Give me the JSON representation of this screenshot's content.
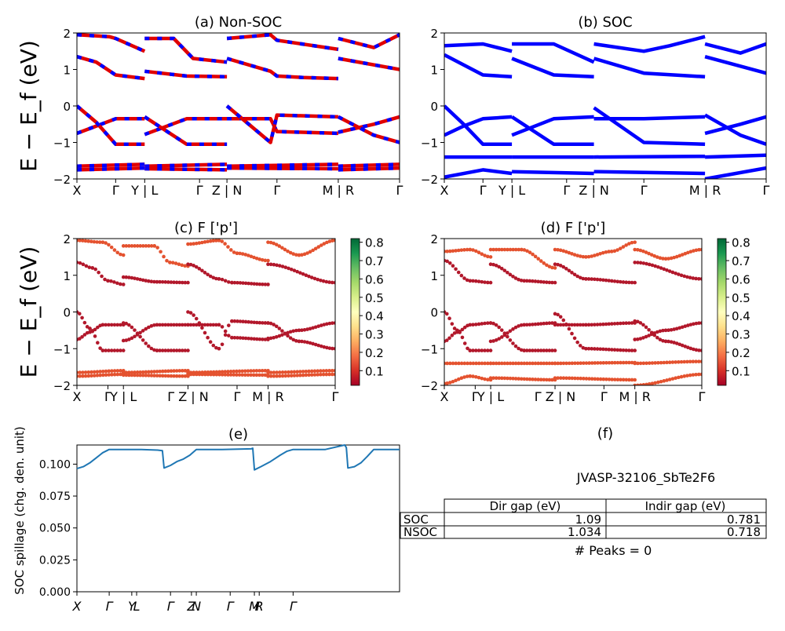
{
  "chart_data": [
    {
      "panel": "a",
      "type": "line",
      "title": "(a) Non-SOC",
      "ylabel": "E − E_f (eV)",
      "ylim": [
        -2,
        2
      ],
      "yticks": [
        "2",
        "1",
        "0",
        "−1",
        "−2"
      ],
      "xticks": [
        "X",
        "Γ",
        "Y | L",
        "Γ",
        "Z | N",
        "Γ",
        "M | R",
        "Γ"
      ],
      "colors": [
        "#e00000",
        "#0000ff"
      ],
      "segment_breaks": [
        0.21,
        0.465,
        0.81
      ],
      "bands": [
        {
          "name": "upper-1",
          "x": [
            0,
            0.1,
            0.12,
            0.21,
            0.21,
            0.3,
            0.36,
            0.465,
            0.465,
            0.6,
            0.62,
            0.81,
            0.81,
            0.92,
            1.0
          ],
          "y": [
            1.95,
            1.9,
            1.85,
            1.5,
            1.85,
            1.85,
            1.3,
            1.2,
            1.85,
            1.95,
            1.8,
            1.55,
            1.85,
            1.6,
            1.95
          ]
        },
        {
          "name": "upper-2",
          "x": [
            0,
            0.06,
            0.12,
            0.21,
            0.21,
            0.34,
            0.465,
            0.465,
            0.6,
            0.62,
            0.7,
            0.81,
            0.81,
            1.0
          ],
          "y": [
            1.35,
            1.2,
            0.85,
            0.75,
            0.95,
            0.82,
            0.8,
            1.3,
            0.95,
            0.82,
            0.78,
            0.75,
            1.3,
            1.0
          ]
        },
        {
          "name": "valence-1",
          "x": [
            0,
            0.06,
            0.12,
            0.21,
            0.21,
            0.34,
            0.465,
            0.465,
            0.6,
            0.62,
            0.81,
            0.81,
            0.92,
            1.0
          ],
          "y": [
            -0.75,
            -0.55,
            -0.35,
            -0.35,
            -0.78,
            -0.35,
            -0.35,
            -0.35,
            -0.35,
            -0.7,
            -0.75,
            -0.72,
            -0.5,
            -0.3
          ]
        },
        {
          "name": "valence-2",
          "x": [
            0,
            0.06,
            0.12,
            0.21,
            0.21,
            0.34,
            0.465,
            0.465,
            0.6,
            0.62,
            0.81,
            0.81,
            0.92,
            1.0
          ],
          "y": [
            0.0,
            -0.45,
            -1.05,
            -1.05,
            -0.3,
            -1.05,
            -1.05,
            0.0,
            -1.0,
            -0.25,
            -0.3,
            -0.3,
            -0.8,
            -1.0
          ]
        },
        {
          "name": "deep-1",
          "x": [
            0,
            0.21,
            0.21,
            0.465,
            0.465,
            0.81,
            0.81,
            1.0
          ],
          "y": [
            -1.65,
            -1.6,
            -1.65,
            -1.6,
            -1.65,
            -1.6,
            -1.65,
            -1.6
          ]
        },
        {
          "name": "deep-2",
          "x": [
            0,
            0.21,
            0.21,
            0.465,
            0.465,
            0.81,
            0.81,
            1.0
          ],
          "y": [
            -1.75,
            -1.7,
            -1.72,
            -1.75,
            -1.7,
            -1.72,
            -1.75,
            -1.7
          ]
        }
      ]
    },
    {
      "panel": "b",
      "type": "line",
      "title": "(b) SOC",
      "ylim": [
        -2,
        2
      ],
      "yticks": [
        "2",
        "1",
        "0",
        "−1",
        "−2"
      ],
      "xticks": [
        "X",
        "Γ",
        "Y | L",
        "Γ",
        "Z | N",
        "Γ",
        "M | R",
        "Γ"
      ],
      "colors": [
        "#0000ff"
      ],
      "segment_breaks": [
        0.21,
        0.465,
        0.81
      ],
      "bands": [
        {
          "name": "upper-1",
          "x": [
            0,
            0.12,
            0.21,
            0.21,
            0.34,
            0.465,
            0.465,
            0.62,
            0.7,
            0.81,
            0.81,
            0.92,
            1.0
          ],
          "y": [
            1.65,
            1.7,
            1.5,
            1.7,
            1.7,
            1.2,
            1.7,
            1.5,
            1.65,
            1.9,
            1.7,
            1.45,
            1.7
          ]
        },
        {
          "name": "upper-2",
          "x": [
            0,
            0.12,
            0.21,
            0.21,
            0.34,
            0.465,
            0.465,
            0.62,
            0.81,
            0.81,
            1.0
          ],
          "y": [
            1.4,
            0.85,
            0.8,
            1.3,
            0.85,
            0.8,
            1.3,
            0.9,
            0.8,
            1.35,
            0.9
          ]
        },
        {
          "name": "valence-1",
          "x": [
            0,
            0.06,
            0.12,
            0.21,
            0.21,
            0.34,
            0.465,
            0.465,
            0.62,
            0.81,
            0.81,
            0.92,
            1.0
          ],
          "y": [
            -0.8,
            -0.55,
            -0.35,
            -0.3,
            -0.8,
            -0.35,
            -0.3,
            -0.35,
            -0.35,
            -0.3,
            -0.75,
            -0.5,
            -0.3
          ]
        },
        {
          "name": "valence-2",
          "x": [
            0,
            0.06,
            0.12,
            0.21,
            0.21,
            0.34,
            0.465,
            0.465,
            0.62,
            0.81,
            0.81,
            0.92,
            1.0
          ],
          "y": [
            0.0,
            -0.5,
            -1.05,
            -1.05,
            -0.3,
            -1.05,
            -1.05,
            -0.05,
            -1.0,
            -1.05,
            -0.25,
            -0.8,
            -1.05
          ]
        },
        {
          "name": "deep-1",
          "x": [
            0,
            0.21,
            0.21,
            0.465,
            0.465,
            0.81,
            0.81,
            1.0
          ],
          "y": [
            -1.4,
            -1.4,
            -1.4,
            -1.4,
            -1.4,
            -1.38,
            -1.4,
            -1.35
          ]
        },
        {
          "name": "deep-2",
          "x": [
            0,
            0.12,
            0.21,
            0.21,
            0.465,
            0.465,
            0.81,
            0.81,
            1.0
          ],
          "y": [
            -1.95,
            -1.75,
            -1.85,
            -1.8,
            -1.85,
            -1.8,
            -1.85,
            -2.0,
            -1.7
          ]
        }
      ]
    },
    {
      "panel": "c",
      "type": "scatter",
      "title": "(c)  F ['p']",
      "ylabel": "E − E_f (eV)",
      "ylim": [
        -2,
        2
      ],
      "yticks": [
        "2",
        "1",
        "0",
        "−1",
        "−2"
      ],
      "xticks": [
        "X",
        "Γ",
        "Y | L",
        "Γ Z | N",
        "Γ",
        "M | R",
        "Γ"
      ],
      "colorbar": {
        "ticks": [
          "0.8",
          "0.7",
          "0.6",
          "0.5",
          "0.4",
          "0.3",
          "0.2",
          "0.1"
        ],
        "range": [
          0.02,
          0.82
        ],
        "cmap": [
          "#a50026",
          "#d73027",
          "#f46d43",
          "#fdae61",
          "#fee08b",
          "#ffffbf",
          "#d9ef8b",
          "#a6d96a",
          "#66bd63",
          "#1a9850",
          "#006837"
        ]
      },
      "point_color_low": "#b2182b",
      "point_color_mid": "#e4522f",
      "segment_breaks": [
        0.18,
        0.43,
        0.74
      ],
      "bands": [
        {
          "name": "upper-1",
          "w": 0.3,
          "x": [
            0,
            0.1,
            0.18,
            0.18,
            0.3,
            0.36,
            0.43,
            0.43,
            0.55,
            0.62,
            0.74,
            0.74,
            0.86,
            1.0
          ],
          "y": [
            1.95,
            1.9,
            1.55,
            1.8,
            1.8,
            1.35,
            1.25,
            1.85,
            1.95,
            1.6,
            1.4,
            1.9,
            1.55,
            1.95
          ]
        },
        {
          "name": "upper-2",
          "w": 0.1,
          "x": [
            0,
            0.06,
            0.12,
            0.18,
            0.18,
            0.31,
            0.43,
            0.43,
            0.55,
            0.6,
            0.74,
            0.74,
            1.0
          ],
          "y": [
            1.35,
            1.2,
            0.85,
            0.75,
            0.95,
            0.82,
            0.8,
            1.3,
            0.9,
            0.8,
            0.75,
            1.3,
            0.8
          ]
        },
        {
          "name": "valence-1",
          "w": 0.08,
          "x": [
            0,
            0.05,
            0.1,
            0.18,
            0.18,
            0.31,
            0.43,
            0.43,
            0.55,
            0.6,
            0.74,
            0.74,
            0.86,
            1.0
          ],
          "y": [
            -0.75,
            -0.55,
            -0.35,
            -0.35,
            -0.78,
            -0.35,
            -0.35,
            -0.35,
            -0.35,
            -0.7,
            -0.75,
            -0.72,
            -0.5,
            -0.3
          ]
        },
        {
          "name": "valence-2",
          "w": 0.08,
          "x": [
            0,
            0.05,
            0.1,
            0.18,
            0.18,
            0.31,
            0.43,
            0.43,
            0.55,
            0.6,
            0.74,
            0.74,
            0.86,
            1.0
          ],
          "y": [
            0.0,
            -0.45,
            -1.05,
            -1.05,
            -0.3,
            -1.05,
            -1.05,
            0.0,
            -1.0,
            -0.25,
            -0.3,
            -0.3,
            -0.8,
            -1.0
          ]
        },
        {
          "name": "deep-1",
          "w": 0.22,
          "x": [
            0,
            0.18,
            0.18,
            0.43,
            0.43,
            0.74,
            0.74,
            1.0
          ],
          "y": [
            -1.65,
            -1.6,
            -1.65,
            -1.6,
            -1.65,
            -1.6,
            -1.65,
            -1.6
          ]
        },
        {
          "name": "deep-2",
          "w": 0.25,
          "x": [
            0,
            0.18,
            0.18,
            0.43,
            0.43,
            0.74,
            0.74,
            1.0
          ],
          "y": [
            -1.75,
            -1.7,
            -1.72,
            -1.75,
            -1.7,
            -1.72,
            -1.75,
            -1.7
          ]
        }
      ]
    },
    {
      "panel": "d",
      "type": "scatter",
      "title": "(d) F ['p']",
      "ylim": [
        -2,
        2
      ],
      "yticks": [
        "2",
        "1",
        "0",
        "−1",
        "−2"
      ],
      "xticks": [
        "X",
        "Γ",
        "Y | L",
        "Γ Z | N",
        "Γ",
        "M | R",
        "Γ"
      ],
      "colorbar": {
        "ticks": [
          "0.8",
          "0.7",
          "0.6",
          "0.5",
          "0.4",
          "0.3",
          "0.2",
          "0.1"
        ],
        "range": [
          0.02,
          0.82
        ],
        "cmap": [
          "#a50026",
          "#d73027",
          "#f46d43",
          "#fdae61",
          "#fee08b",
          "#ffffbf",
          "#d9ef8b",
          "#a6d96a",
          "#66bd63",
          "#1a9850",
          "#006837"
        ]
      },
      "point_color_low": "#b2182b",
      "point_color_mid": "#e4522f",
      "segment_breaks": [
        0.18,
        0.43,
        0.74
      ],
      "bands": [
        {
          "name": "upper-1",
          "w": 0.25,
          "x": [
            0,
            0.1,
            0.18,
            0.18,
            0.3,
            0.43,
            0.43,
            0.55,
            0.65,
            0.74,
            0.74,
            0.86,
            1.0
          ],
          "y": [
            1.65,
            1.7,
            1.5,
            1.7,
            1.7,
            1.2,
            1.7,
            1.5,
            1.65,
            1.9,
            1.7,
            1.45,
            1.7
          ]
        },
        {
          "name": "upper-2",
          "w": 0.1,
          "x": [
            0,
            0.1,
            0.18,
            0.18,
            0.31,
            0.43,
            0.43,
            0.55,
            0.74,
            0.74,
            1.0
          ],
          "y": [
            1.4,
            0.85,
            0.8,
            1.3,
            0.85,
            0.8,
            1.3,
            0.9,
            0.8,
            1.35,
            0.9
          ]
        },
        {
          "name": "valence-1",
          "w": 0.08,
          "x": [
            0,
            0.05,
            0.1,
            0.18,
            0.18,
            0.31,
            0.43,
            0.43,
            0.55,
            0.74,
            0.74,
            0.86,
            1.0
          ],
          "y": [
            -0.8,
            -0.55,
            -0.35,
            -0.3,
            -0.8,
            -0.35,
            -0.3,
            -0.35,
            -0.35,
            -0.3,
            -0.75,
            -0.5,
            -0.3
          ]
        },
        {
          "name": "valence-2",
          "w": 0.08,
          "x": [
            0,
            0.05,
            0.1,
            0.18,
            0.18,
            0.31,
            0.43,
            0.43,
            0.55,
            0.74,
            0.74,
            0.86,
            1.0
          ],
          "y": [
            0.0,
            -0.5,
            -1.05,
            -1.05,
            -0.3,
            -1.05,
            -1.05,
            -0.05,
            -1.0,
            -1.05,
            -0.25,
            -0.8,
            -1.05
          ]
        },
        {
          "name": "deep-1",
          "w": 0.22,
          "x": [
            0,
            0.18,
            0.18,
            0.43,
            0.43,
            0.74,
            0.74,
            1.0
          ],
          "y": [
            -1.4,
            -1.4,
            -1.4,
            -1.4,
            -1.4,
            -1.38,
            -1.4,
            -1.35
          ]
        },
        {
          "name": "deep-2",
          "w": 0.25,
          "x": [
            0,
            0.1,
            0.18,
            0.18,
            0.43,
            0.43,
            0.74,
            0.74,
            1.0
          ],
          "y": [
            -1.95,
            -1.75,
            -1.85,
            -1.8,
            -1.85,
            -1.8,
            -1.85,
            -2.0,
            -1.7
          ]
        }
      ]
    },
    {
      "panel": "e",
      "type": "line",
      "title": "(e)",
      "ylabel": "SOC spillage (chg. den. unit)",
      "ylim": [
        0,
        0.115
      ],
      "yticks": [
        0.0,
        0.025,
        0.05,
        0.075,
        0.1
      ],
      "ytick_labels": [
        "0.000",
        "0.025",
        "0.050",
        "0.075",
        "0.100"
      ],
      "xticks": [
        {
          "label": "X",
          "pos": 0.0
        },
        {
          "label": "Γ",
          "pos": 0.1
        },
        {
          "label": "Y",
          "pos": 0.17
        },
        {
          "label": "L",
          "pos": 0.185
        },
        {
          "label": "Γ",
          "pos": 0.29
        },
        {
          "label": "Z",
          "pos": 0.355
        },
        {
          "label": "N",
          "pos": 0.37
        },
        {
          "label": "Γ",
          "pos": 0.475
        },
        {
          "label": "M",
          "pos": 0.55
        },
        {
          "label": "R",
          "pos": 0.565
        },
        {
          "label": "Γ",
          "pos": 0.67
        }
      ],
      "color": "#1f77b4",
      "series": [
        {
          "x": [
            0.0,
            0.02,
            0.04,
            0.06,
            0.08,
            0.1,
            0.15,
            0.2,
            0.25,
            0.265,
            0.27,
            0.29,
            0.31,
            0.33,
            0.35,
            0.37,
            0.45,
            0.54,
            0.545,
            0.55,
            0.57,
            0.6,
            0.63,
            0.65,
            0.67,
            0.77,
            0.83,
            0.835,
            0.84,
            0.86,
            0.88,
            0.9,
            0.92,
            1.0
          ],
          "y": [
            0.0965,
            0.098,
            0.101,
            0.105,
            0.109,
            0.1115,
            0.1115,
            0.1115,
            0.111,
            0.1105,
            0.097,
            0.099,
            0.102,
            0.104,
            0.107,
            0.1115,
            0.1115,
            0.112,
            0.1125,
            0.0955,
            0.098,
            0.102,
            0.107,
            0.11,
            0.1115,
            0.1115,
            0.115,
            0.113,
            0.097,
            0.098,
            0.101,
            0.106,
            0.1115,
            0.1115
          ]
        }
      ]
    }
  ],
  "table_panel": {
    "title": "(f)",
    "material": "JVASP-32106_SbTe2F6",
    "columns": [
      "Dir gap (eV)",
      "Indir gap (eV)"
    ],
    "rows": [
      {
        "label": "SOC",
        "dir": "1.09",
        "indir": "0.781"
      },
      {
        "label": "NSOC",
        "dir": "1.034",
        "indir": "0.718"
      }
    ],
    "footnote": "# Peaks = 0"
  }
}
